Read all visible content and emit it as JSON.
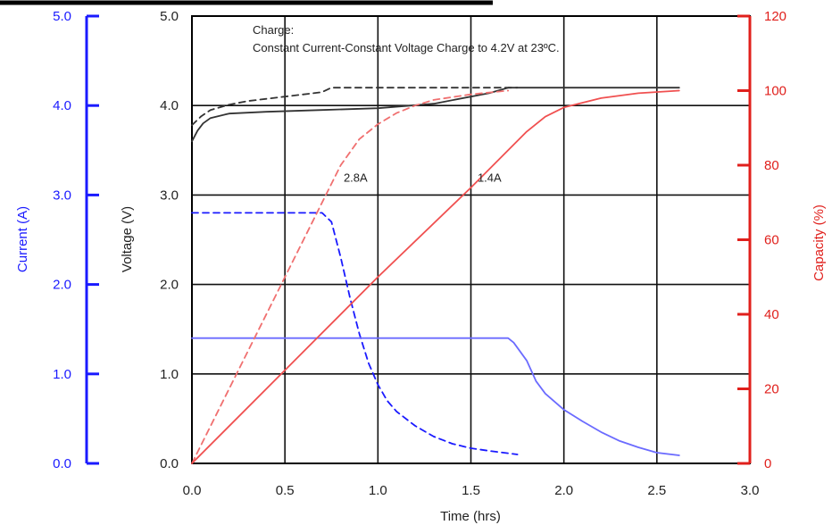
{
  "chart_data": {
    "type": "line",
    "annotation_lines": [
      "Charge:",
      "Constant Current-Constant Voltage Charge to 4.2V at 23ºC."
    ],
    "xlabel": "Time (hrs)",
    "xlim": [
      0,
      3
    ],
    "xticks": [
      "0.0",
      "0.5",
      "1.0",
      "1.5",
      "2.0",
      "2.5",
      "3.0"
    ],
    "axes": {
      "current": {
        "label": "Current (A)",
        "lim": [
          0,
          5
        ],
        "ticks": [
          "0.0",
          "1.0",
          "2.0",
          "3.0",
          "4.0",
          "5.0"
        ],
        "color": "#1a1aff"
      },
      "voltage": {
        "label": "Voltage (V)",
        "lim": [
          0,
          5
        ],
        "ticks": [
          "0.0",
          "1.0",
          "2.0",
          "3.0",
          "4.0",
          "5.0"
        ],
        "color": "#222222"
      },
      "capacity": {
        "label": "Capacity (%)",
        "lim": [
          0,
          120
        ],
        "ticks": [
          "0",
          "20",
          "40",
          "60",
          "80",
          "100",
          "120"
        ],
        "color": "#e0201c"
      }
    },
    "grid": true,
    "series": [
      {
        "rate": "2.8A",
        "quantity": "voltage",
        "axis": "voltage",
        "style": "dashed",
        "color": "#333333",
        "x": [
          0,
          0.05,
          0.1,
          0.2,
          0.3,
          0.5,
          0.7,
          0.75,
          1.0,
          1.5,
          1.75
        ],
        "y": [
          3.78,
          3.88,
          3.95,
          4.01,
          4.05,
          4.1,
          4.15,
          4.2,
          4.2,
          4.2,
          4.2
        ]
      },
      {
        "rate": "1.4A",
        "quantity": "voltage",
        "axis": "voltage",
        "style": "solid",
        "color": "#333333",
        "x": [
          0,
          0.03,
          0.06,
          0.1,
          0.2,
          0.4,
          0.7,
          1.0,
          1.3,
          1.6,
          1.7,
          2.0,
          2.3,
          2.62
        ],
        "y": [
          3.6,
          3.72,
          3.8,
          3.86,
          3.91,
          3.93,
          3.95,
          3.97,
          4.02,
          4.14,
          4.2,
          4.2,
          4.2,
          4.2
        ]
      },
      {
        "rate": "2.8A",
        "quantity": "current",
        "axis": "current",
        "style": "dashed",
        "color": "#1a1aff",
        "x": [
          0,
          0.7,
          0.75,
          0.8,
          0.85,
          0.9,
          0.95,
          1.0,
          1.05,
          1.1,
          1.2,
          1.3,
          1.4,
          1.5,
          1.6,
          1.75
        ],
        "y": [
          2.8,
          2.8,
          2.7,
          2.3,
          1.85,
          1.45,
          1.12,
          0.88,
          0.7,
          0.58,
          0.42,
          0.3,
          0.22,
          0.17,
          0.14,
          0.1
        ]
      },
      {
        "rate": "1.4A",
        "quantity": "current",
        "axis": "current",
        "style": "solid",
        "color": "#6b6bff",
        "x": [
          0,
          1.7,
          1.73,
          1.8,
          1.85,
          1.9,
          2.0,
          2.1,
          2.2,
          2.3,
          2.4,
          2.5,
          2.62
        ],
        "y": [
          1.4,
          1.4,
          1.35,
          1.15,
          0.92,
          0.78,
          0.6,
          0.47,
          0.35,
          0.25,
          0.18,
          0.12,
          0.09
        ]
      },
      {
        "rate": "2.8A",
        "quantity": "capacity",
        "axis": "capacity",
        "style": "dashed",
        "color": "#f07070",
        "x": [
          0,
          0.25,
          0.5,
          0.7,
          0.8,
          0.9,
          1.0,
          1.1,
          1.2,
          1.3,
          1.5,
          1.7
        ],
        "y": [
          0,
          25,
          50,
          70,
          80,
          87,
          91,
          94,
          96,
          97.5,
          99,
          100
        ]
      },
      {
        "rate": "1.4A",
        "quantity": "capacity",
        "axis": "capacity",
        "style": "solid",
        "color": "#f05050",
        "x": [
          0,
          0.5,
          1.0,
          1.5,
          1.7,
          1.8,
          1.9,
          2.0,
          2.2,
          2.4,
          2.62
        ],
        "y": [
          0,
          25,
          50,
          74,
          84,
          89,
          93,
          95.5,
          98,
          99.3,
          100
        ]
      }
    ],
    "data_labels": [
      {
        "text": "2.8A",
        "x": 0.88,
        "y_voltage": 3.15
      },
      {
        "text": "1.4A",
        "x": 1.6,
        "y_voltage": 3.15
      }
    ]
  }
}
